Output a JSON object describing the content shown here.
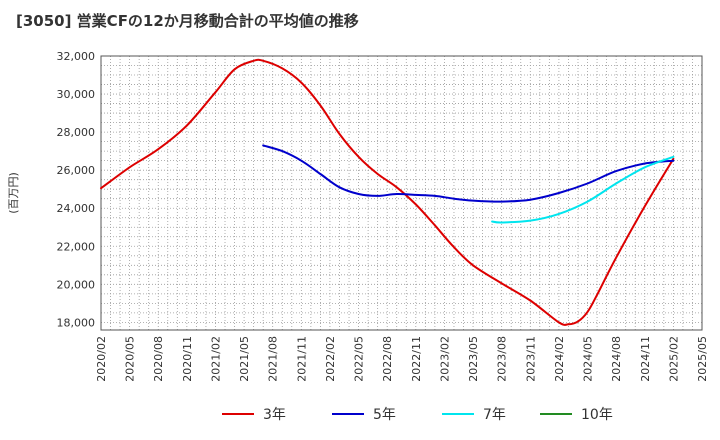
{
  "chart_data": {
    "type": "line",
    "title": "[3050]  営業CFの12か月移動合計の平均値の推移",
    "ylabel": "(百万円)",
    "xlabel": "",
    "ylim": [
      17600,
      32000
    ],
    "yticks": [
      18000,
      20000,
      22000,
      24000,
      26000,
      28000,
      30000,
      32000
    ],
    "ytick_labels": [
      "18,000",
      "20,000",
      "22,000",
      "24,000",
      "26,000",
      "28,000",
      "30,000",
      "32,000"
    ],
    "xlim": [
      "2020-02",
      "2025-05"
    ],
    "xtick_labels": [
      "2020/02",
      "2020/05",
      "2020/08",
      "2020/11",
      "2021/02",
      "2021/05",
      "2021/08",
      "2021/11",
      "2022/02",
      "2022/05",
      "2022/08",
      "2022/11",
      "2023/02",
      "2023/05",
      "2023/08",
      "2023/11",
      "2024/02",
      "2024/05",
      "2024/08",
      "2024/11",
      "2025/02",
      "2025/05"
    ],
    "grid": true,
    "legend_position": "bottom",
    "series": [
      {
        "name": "3年",
        "color": "#dd0000",
        "points": [
          [
            "2020-02",
            25050
          ],
          [
            "2020-05",
            26150
          ],
          [
            "2020-08",
            27100
          ],
          [
            "2020-11",
            28350
          ],
          [
            "2021-02",
            30100
          ],
          [
            "2021-04",
            31300
          ],
          [
            "2021-06",
            31750
          ],
          [
            "2021-07",
            31750
          ],
          [
            "2021-09",
            31350
          ],
          [
            "2021-11",
            30600
          ],
          [
            "2022-01",
            29400
          ],
          [
            "2022-03",
            27900
          ],
          [
            "2022-05",
            26700
          ],
          [
            "2022-07",
            25800
          ],
          [
            "2022-09",
            25100
          ],
          [
            "2022-11",
            24200
          ],
          [
            "2023-01",
            23100
          ],
          [
            "2023-03",
            21950
          ],
          [
            "2023-05",
            21000
          ],
          [
            "2023-08",
            20050
          ],
          [
            "2023-11",
            19150
          ],
          [
            "2024-02",
            18000
          ],
          [
            "2024-03",
            17900
          ],
          [
            "2024-04",
            18050
          ],
          [
            "2024-05",
            18550
          ],
          [
            "2024-06",
            19450
          ],
          [
            "2024-08",
            21400
          ],
          [
            "2024-11",
            24100
          ],
          [
            "2025-02",
            26600
          ]
        ]
      },
      {
        "name": "5年",
        "color": "#0000cc",
        "points": [
          [
            "2021-07",
            27300
          ],
          [
            "2021-09",
            27000
          ],
          [
            "2021-11",
            26500
          ],
          [
            "2022-01",
            25800
          ],
          [
            "2022-03",
            25100
          ],
          [
            "2022-05",
            24750
          ],
          [
            "2022-07",
            24650
          ],
          [
            "2022-09",
            24750
          ],
          [
            "2022-11",
            24700
          ],
          [
            "2023-01",
            24650
          ],
          [
            "2023-03",
            24500
          ],
          [
            "2023-05",
            24400
          ],
          [
            "2023-08",
            24350
          ],
          [
            "2023-11",
            24450
          ],
          [
            "2024-02",
            24800
          ],
          [
            "2024-05",
            25300
          ],
          [
            "2024-08",
            25950
          ],
          [
            "2024-11",
            26350
          ],
          [
            "2025-02",
            26500
          ]
        ]
      },
      {
        "name": "7年",
        "color": "#00e5ee",
        "points": [
          [
            "2023-07",
            23300
          ],
          [
            "2023-08",
            23250
          ],
          [
            "2023-11",
            23350
          ],
          [
            "2024-02",
            23700
          ],
          [
            "2024-05",
            24350
          ],
          [
            "2024-08",
            25300
          ],
          [
            "2024-11",
            26150
          ],
          [
            "2025-02",
            26700
          ]
        ]
      },
      {
        "name": "10年",
        "color": "#228b22",
        "points": []
      }
    ]
  }
}
